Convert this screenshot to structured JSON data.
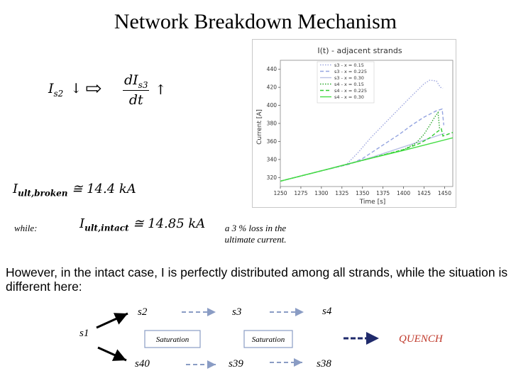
{
  "slide": {
    "title": "Network Breakdown Mechanism"
  },
  "equations": {
    "is2_base": "I",
    "is2_sub": "s2",
    "arrow_down": "↓",
    "implies": "⇨",
    "deriv_num": "dI",
    "deriv_num_sub": "s3",
    "deriv_den": "dt",
    "arrow_up": "↑",
    "broken_base": "I",
    "broken_sub": "ult,broken",
    "broken_value": "≅ 14.4 kA",
    "while_label": "while:",
    "intact_base": "I",
    "intact_sub": "ult,intact",
    "intact_value": "≅ 14.85 kA"
  },
  "annotation": {
    "line1": "a 3 % loss in the",
    "line2": "ultimate current."
  },
  "paragraph": {
    "line1": "However, in the intact case, I  is perfectly distributed among all strands, while the situation is",
    "line2": "different here:"
  },
  "flow": {
    "s1": "s1",
    "s2": "s2",
    "s3": "s3",
    "s4": "s4",
    "s40": "s40",
    "s39": "s39",
    "s38": "s38",
    "saturation1": "Saturation",
    "saturation2": "Saturation",
    "quench": "QUENCH"
  },
  "colors": {
    "dashed_arrow": "#8a9cc4",
    "quench_arrow": "#1f2a6b",
    "bright_green": "#2ecc2e",
    "dark_green": "#2a9e2a"
  },
  "chart_data": {
    "type": "line",
    "title": "I(t) - adjacent strands",
    "xlabel": "Time [s]",
    "ylabel": "Current [A]",
    "xlim": [
      1250,
      1460
    ],
    "ylim": [
      310,
      450
    ],
    "x_ticks": [
      1250,
      1275,
      1300,
      1325,
      1350,
      1375,
      1400,
      1425,
      1450
    ],
    "y_ticks": [
      320,
      340,
      360,
      380,
      400,
      420,
      440
    ],
    "legend_position": "top-center",
    "series": [
      {
        "name": "s3 - x = 0.15",
        "color": "#a0a8e0",
        "style": "dotted",
        "x": [
          1250,
          1300,
          1330,
          1345,
          1360,
          1375,
          1390,
          1405,
          1415,
          1425,
          1432,
          1440,
          1445,
          1448
        ],
        "y": [
          316,
          327.5,
          334,
          348,
          364,
          378,
          392,
          406,
          415,
          424,
          428,
          427,
          420,
          419
        ]
      },
      {
        "name": "s3 - x = 0.225",
        "color": "#94a4e0",
        "style": "dashed",
        "x": [
          1250,
          1300,
          1335,
          1350,
          1365,
          1380,
          1395,
          1410,
          1425,
          1440,
          1447,
          1449
        ],
        "y": [
          316,
          327.5,
          335,
          341,
          350,
          359,
          368,
          378,
          387,
          394,
          396,
          378
        ]
      },
      {
        "name": "s3 - x = 0.30",
        "color": "#b8c0e4",
        "style": "solid",
        "x": [
          1250,
          1300,
          1340,
          1360,
          1380,
          1400,
          1420,
          1440,
          1450
        ],
        "y": [
          316,
          327.5,
          337,
          342,
          348,
          354,
          360,
          366,
          369
        ]
      },
      {
        "name": "s4 - x = 0.15",
        "color": "#2ea82e",
        "style": "dotted",
        "x": [
          1250,
          1300,
          1350,
          1400,
          1415,
          1425,
          1432,
          1438,
          1442,
          1444
        ],
        "y": [
          316,
          327.5,
          339,
          351,
          358,
          368,
          378,
          387,
          392,
          373
        ]
      },
      {
        "name": "s4 - x = 0.225",
        "color": "#2ecc2e",
        "style": "dashed",
        "x": [
          1250,
          1300,
          1350,
          1400,
          1420,
          1432,
          1440,
          1446,
          1448,
          1460
        ],
        "y": [
          316,
          327.5,
          339,
          351,
          358,
          364,
          370,
          374,
          366,
          370
        ]
      },
      {
        "name": "s4 - x = 0.30",
        "color": "#44dd44",
        "style": "solid",
        "x": [
          1250,
          1300,
          1350,
          1400,
          1430,
          1460
        ],
        "y": [
          316,
          327.5,
          339,
          350,
          357,
          364
        ]
      }
    ]
  }
}
